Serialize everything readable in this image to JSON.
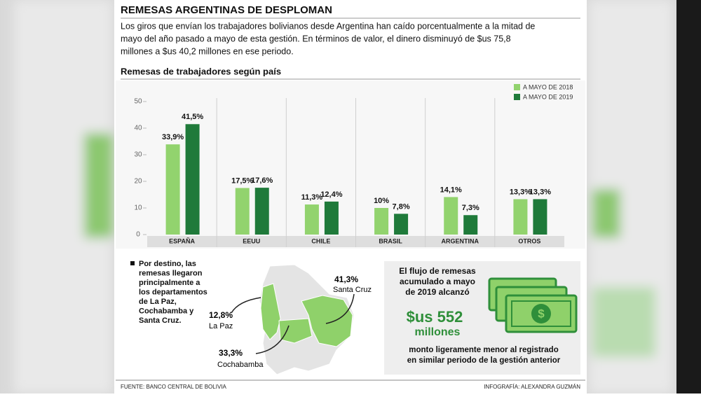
{
  "header": {
    "title": "REMESAS ARGENTINAS DE DESPLOMAN",
    "lead": [
      "Los giros que envían los trabajadores bolivianos desde Argentina han caído porcentualmente a la mitad de",
      "mayo del año pasado a mayo de esta gestión. En términos de valor, el dinero disminuyó de $us 75,8",
      "millones a $us 40,2 millones en ese periodo."
    ]
  },
  "chart_data": {
    "type": "bar",
    "title": "Remesas de trabajadores según país",
    "categories": [
      "ESPAÑA",
      "EEUU",
      "CHILE",
      "BRASIL",
      "ARGENTINA",
      "OTROS"
    ],
    "series": [
      {
        "name": "A MAYO DE 2018",
        "color": "#92d36e",
        "values": [
          33.9,
          17.5,
          11.3,
          10,
          14.1,
          13.3
        ],
        "value_labels": [
          "33,9%",
          "17,5%",
          "11,3%",
          "10%",
          "14,1%",
          "13,3%"
        ]
      },
      {
        "name": "A MAYO DE 2019",
        "color": "#1f7a3a",
        "values": [
          41.5,
          17.6,
          12.4,
          7.8,
          7.3,
          13.3
        ],
        "value_labels": [
          "41,5%",
          "17,6%",
          "12,4%",
          "7,8%",
          "7,3%",
          "13,3%"
        ]
      }
    ],
    "ylim": [
      0,
      50
    ],
    "yticks": [
      0,
      10,
      20,
      30,
      40,
      50
    ],
    "legend": "top-right"
  },
  "note": [
    "Por destino, las",
    "remesas llegaron",
    "principalmente a",
    "los departamentos",
    "de La Paz,",
    "Cochabamba y",
    "Santa Cruz."
  ],
  "map": {
    "regions": [
      {
        "value": "41,3%",
        "name": "Santa Cruz"
      },
      {
        "value": "12,8%",
        "name": "La Paz"
      },
      {
        "value": "33,3%",
        "name": "Cochabamba"
      }
    ]
  },
  "highlight": {
    "intro": [
      "El flujo de remesas",
      "acumulado a mayo",
      "de 2019 alcanzó"
    ],
    "amount": "$us 552",
    "unit": "millones",
    "outro": [
      "monto ligeramente menor al registrado",
      "en similar periodo de la gestión anterior"
    ]
  },
  "footer": {
    "source": "FUENTE:  BANCO CENTRAL DE BOLIVIA",
    "credit": "INFOGRAFÍA: ALEXANDRA GUZMÁN"
  }
}
